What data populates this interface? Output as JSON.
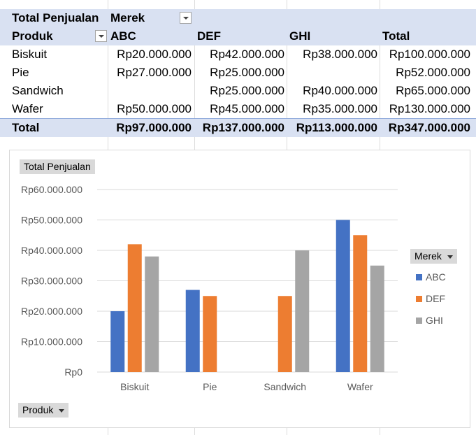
{
  "pivot": {
    "value_field": "Total Penjualan",
    "column_field": "Merek",
    "row_field": "Produk",
    "columns": [
      "ABC",
      "DEF",
      "GHI",
      "Total"
    ],
    "rows": [
      {
        "label": "Biskuit",
        "values": [
          "Rp20.000.000",
          "Rp42.000.000",
          "Rp38.000.000",
          "Rp100.000.000"
        ]
      },
      {
        "label": "Pie",
        "values": [
          "Rp27.000.000",
          "Rp25.000.000",
          "",
          "Rp52.000.000"
        ]
      },
      {
        "label": "Sandwich",
        "values": [
          "",
          "Rp25.000.000",
          "Rp40.000.000",
          "Rp65.000.000"
        ]
      },
      {
        "label": "Wafer",
        "values": [
          "Rp50.000.000",
          "Rp45.000.000",
          "Rp35.000.000",
          "Rp130.000.000"
        ]
      }
    ],
    "total": {
      "label": "Total",
      "values": [
        "Rp97.000.000",
        "Rp137.000.000",
        "Rp113.000.000",
        "Rp347.000.000"
      ]
    }
  },
  "chart_buttons": {
    "value": "Total Penjualan",
    "legend": "Merek",
    "axis": "Produk"
  },
  "chart_data": {
    "type": "bar",
    "categories": [
      "Biskuit",
      "Pie",
      "Sandwich",
      "Wafer"
    ],
    "series": [
      {
        "name": "ABC",
        "values": [
          20000000,
          27000000,
          null,
          50000000
        ],
        "color": "#4472c4"
      },
      {
        "name": "DEF",
        "values": [
          42000000,
          25000000,
          25000000,
          45000000
        ],
        "color": "#ed7d31"
      },
      {
        "name": "GHI",
        "values": [
          38000000,
          null,
          40000000,
          35000000
        ],
        "color": "#a5a5a5"
      }
    ],
    "yticks": [
      "Rp0",
      "Rp10.000.000",
      "Rp20.000.000",
      "Rp30.000.000",
      "Rp40.000.000",
      "Rp50.000.000",
      "Rp60.000.000"
    ],
    "ylim": [
      0,
      60000000
    ],
    "grid": true,
    "legend_position": "right"
  }
}
